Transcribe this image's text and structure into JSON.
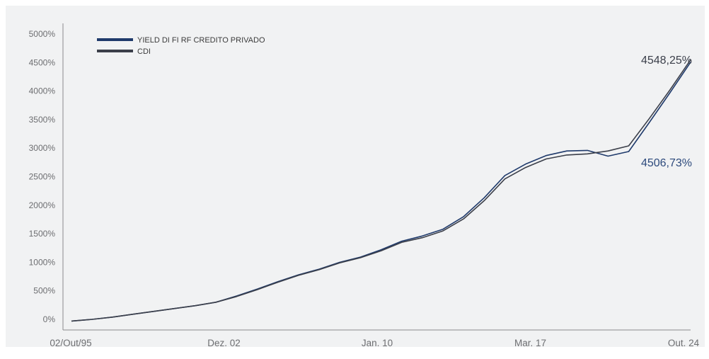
{
  "chart_data": {
    "type": "line",
    "title": "",
    "xlabel": "",
    "ylabel": "",
    "x_tick_labels": [
      "02/Out/95",
      "Dez. 02",
      "Jan. 10",
      "Mar. 17",
      "Out. 24"
    ],
    "y_tick_labels": [
      "0%",
      "500%",
      "1000%",
      "1500%",
      "2000%",
      "2500%",
      "3000%",
      "3500%",
      "4000%",
      "4500%",
      "5000%"
    ],
    "ylim": [
      0,
      5000
    ],
    "grid": false,
    "legend_position": "top-left",
    "x": [
      "1995-10-02",
      "1997-01",
      "1998-01",
      "1999-01",
      "2000-01",
      "2001-01",
      "2002-01",
      "2002-12",
      "2004-01",
      "2005-01",
      "2006-01",
      "2007-01",
      "2008-01",
      "2009-01",
      "2010-01",
      "2011-01",
      "2012-01",
      "2013-01",
      "2014-01",
      "2015-01",
      "2016-01",
      "2017-03",
      "2018-01",
      "2019-01",
      "2019-07",
      "2019-10",
      "2020-06",
      "2021-06",
      "2022-06",
      "2023-06",
      "2024-10"
    ],
    "series": [
      {
        "name": "YIELD DI FI RF CREDITO PRIVADO",
        "color": "#1f3a6b",
        "values": [
          -30,
          0,
          40,
          90,
          140,
          190,
          240,
          300,
          410,
          530,
          660,
          780,
          880,
          1000,
          1090,
          1220,
          1370,
          1460,
          1580,
          1800,
          2130,
          2520,
          2720,
          2870,
          2950,
          2960,
          2860,
          2940,
          3450,
          3970,
          4506.73
        ]
      },
      {
        "name": "CDI",
        "color": "#3b3f4a",
        "values": [
          -30,
          0,
          40,
          90,
          140,
          190,
          240,
          300,
          400,
          520,
          650,
          770,
          870,
          990,
          1080,
          1200,
          1350,
          1430,
          1550,
          1760,
          2080,
          2460,
          2660,
          2810,
          2880,
          2900,
          2950,
          3040,
          3520,
          4020,
          4548.25
        ]
      }
    ],
    "end_labels": [
      {
        "series": "CDI",
        "text": "4548,25%",
        "color": "#3b3f4a"
      },
      {
        "series": "YIELD DI FI RF CREDITO PRIVADO",
        "text": "4506,73%",
        "color": "#2d4a7c"
      }
    ]
  }
}
